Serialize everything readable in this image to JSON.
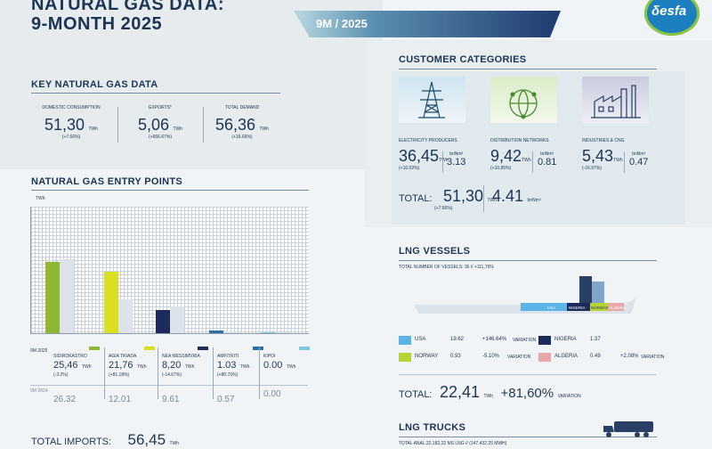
{
  "header": {
    "title_line1": "NATURAL GAS DATA:",
    "title_line2": "9-MONTH 2025",
    "period": "9M / 2025",
    "logo": "δesfa"
  },
  "key_data": {
    "heading": "KEY NATURAL GAS DATA",
    "items": [
      {
        "label": "DOMESTIC CONSUMPTION",
        "value": "51,30",
        "unit": "TWh",
        "change": "(+7.66%)"
      },
      {
        "label": "EXPORTS*",
        "value": "5,06",
        "unit": "TWh",
        "change": "(+666.67%)"
      },
      {
        "label": "TOTAL DEMAND",
        "value": "56,36",
        "unit": "TWh",
        "change": "(+16.66%)"
      }
    ]
  },
  "customer_categories": {
    "heading": "CUSTOMER CATEGORIES",
    "items": [
      {
        "label": "ELECTRICITY PRODUCERS",
        "value": "36,45",
        "unit": "TWh",
        "change": "(+10.02%)",
        "bcm_label": "bnNm³",
        "bcm": "3.13",
        "icon": "power-pylon-icon"
      },
      {
        "label": "DISTRIBUTION NETWORKS",
        "value": "9,42",
        "unit": "TWh",
        "change": "(+10.85%)",
        "bcm_label": "bnNm³",
        "bcm": "0.81",
        "icon": "network-globe-icon"
      },
      {
        "label": "INDUSTRIES & CNG",
        "value": "5,43",
        "unit": "TWh",
        "change": "(-16.97%)",
        "bcm_label": "bnNm³",
        "bcm": "0.47",
        "icon": "factory-icon"
      }
    ],
    "total_label": "TOTAL:",
    "total_value": "51,30",
    "total_unit": "TWh",
    "total_change": "(+7.66%)",
    "total_bcm": "4.41",
    "total_bcm_unit": "bnNm³"
  },
  "entry_points": {
    "heading": "NATURAL GAS ENTRY POINTS",
    "unit": "TWh",
    "row_9m_2025": "9M 2025",
    "row_9m_2024": "9M 2024",
    "points": [
      {
        "name": "SIDIROKASTRO",
        "v2025": "25,46",
        "unit": "TWh",
        "change": "(-3.2%)",
        "v2024": "26.32",
        "color": "#8fb832"
      },
      {
        "name": "AGIA TRIADA",
        "v2025": "21,76",
        "unit": "TWh",
        "change": "(+81.18%)",
        "v2024": "12.01",
        "color": "#d9e021"
      },
      {
        "name": "NEA MESSIMVRIA",
        "v2025": "8,20",
        "unit": "TWh",
        "change": "(-14.67%)",
        "v2024": "9.61",
        "color": "#1d2a5e"
      },
      {
        "name": "AMFITRITI",
        "v2025": "1.03",
        "unit": "TWh",
        "change": "(+80.70%)",
        "v2024": "0.57",
        "color": "#2f6fa7"
      },
      {
        "name": "KIPOI",
        "v2025": "0.00",
        "unit": "TWh",
        "change": "",
        "v2024": "0.00",
        "color": "#7fc8e6"
      }
    ],
    "total_imports_label": "TOTAL IMPORTS:",
    "total_imports_value": "56,45",
    "total_imports_unit": "TWh"
  },
  "chart_data": {
    "type": "bar",
    "categories": [
      "SIDIROKASTRO",
      "AGIA TRIADA",
      "NEA MESSIMVRIA",
      "AMFITRITI",
      "KIPOI"
    ],
    "series": [
      {
        "name": "9M 2025",
        "values": [
          25.46,
          21.76,
          8.2,
          1.03,
          0.0
        ]
      },
      {
        "name": "9M 2024",
        "values": [
          26.32,
          12.01,
          9.61,
          0.57,
          0.0
        ]
      }
    ],
    "ylabel": "TWh",
    "ylim": [
      0,
      45
    ],
    "grid": true
  },
  "lng_vessels": {
    "heading": "LNG VESSELS",
    "subtitle": "TOTAL NUMBER OF VESSELS: 36   //  +111,76%",
    "ship_labels": [
      "USA",
      "NIGERIA",
      "NORWAY",
      "ALGERIA"
    ],
    "countries": [
      {
        "name": "USA",
        "value": "19.62",
        "unit": "TWh",
        "change": "+146.64%",
        "note": "VARIATION",
        "color": "#5ab4e5"
      },
      {
        "name": "NIGERIA",
        "value": "1.37",
        "unit": "TWh",
        "change": "",
        "note": "",
        "color": "#1d2a5e"
      },
      {
        "name": "NORWAY",
        "value": "0.93",
        "unit": "TWh",
        "change": "-5.10%",
        "note": "VARIATION",
        "color": "#b7d334"
      },
      {
        "name": "ALGERIA",
        "value": "0.49",
        "unit": "TWh",
        "change": "+2.08%",
        "note": "VARIATION",
        "color": "#e8a8a8"
      }
    ],
    "total_label": "TOTAL:",
    "total_value": "22,41",
    "total_unit": "TWh",
    "total_change": "+81,60%",
    "total_note": "VARIATION"
  },
  "lng_trucks": {
    "heading": "LNG TRUCKS",
    "subtitle": "TOTAL ANAL  22,182,22 MS LNG // (147,432.25 MWH)"
  }
}
